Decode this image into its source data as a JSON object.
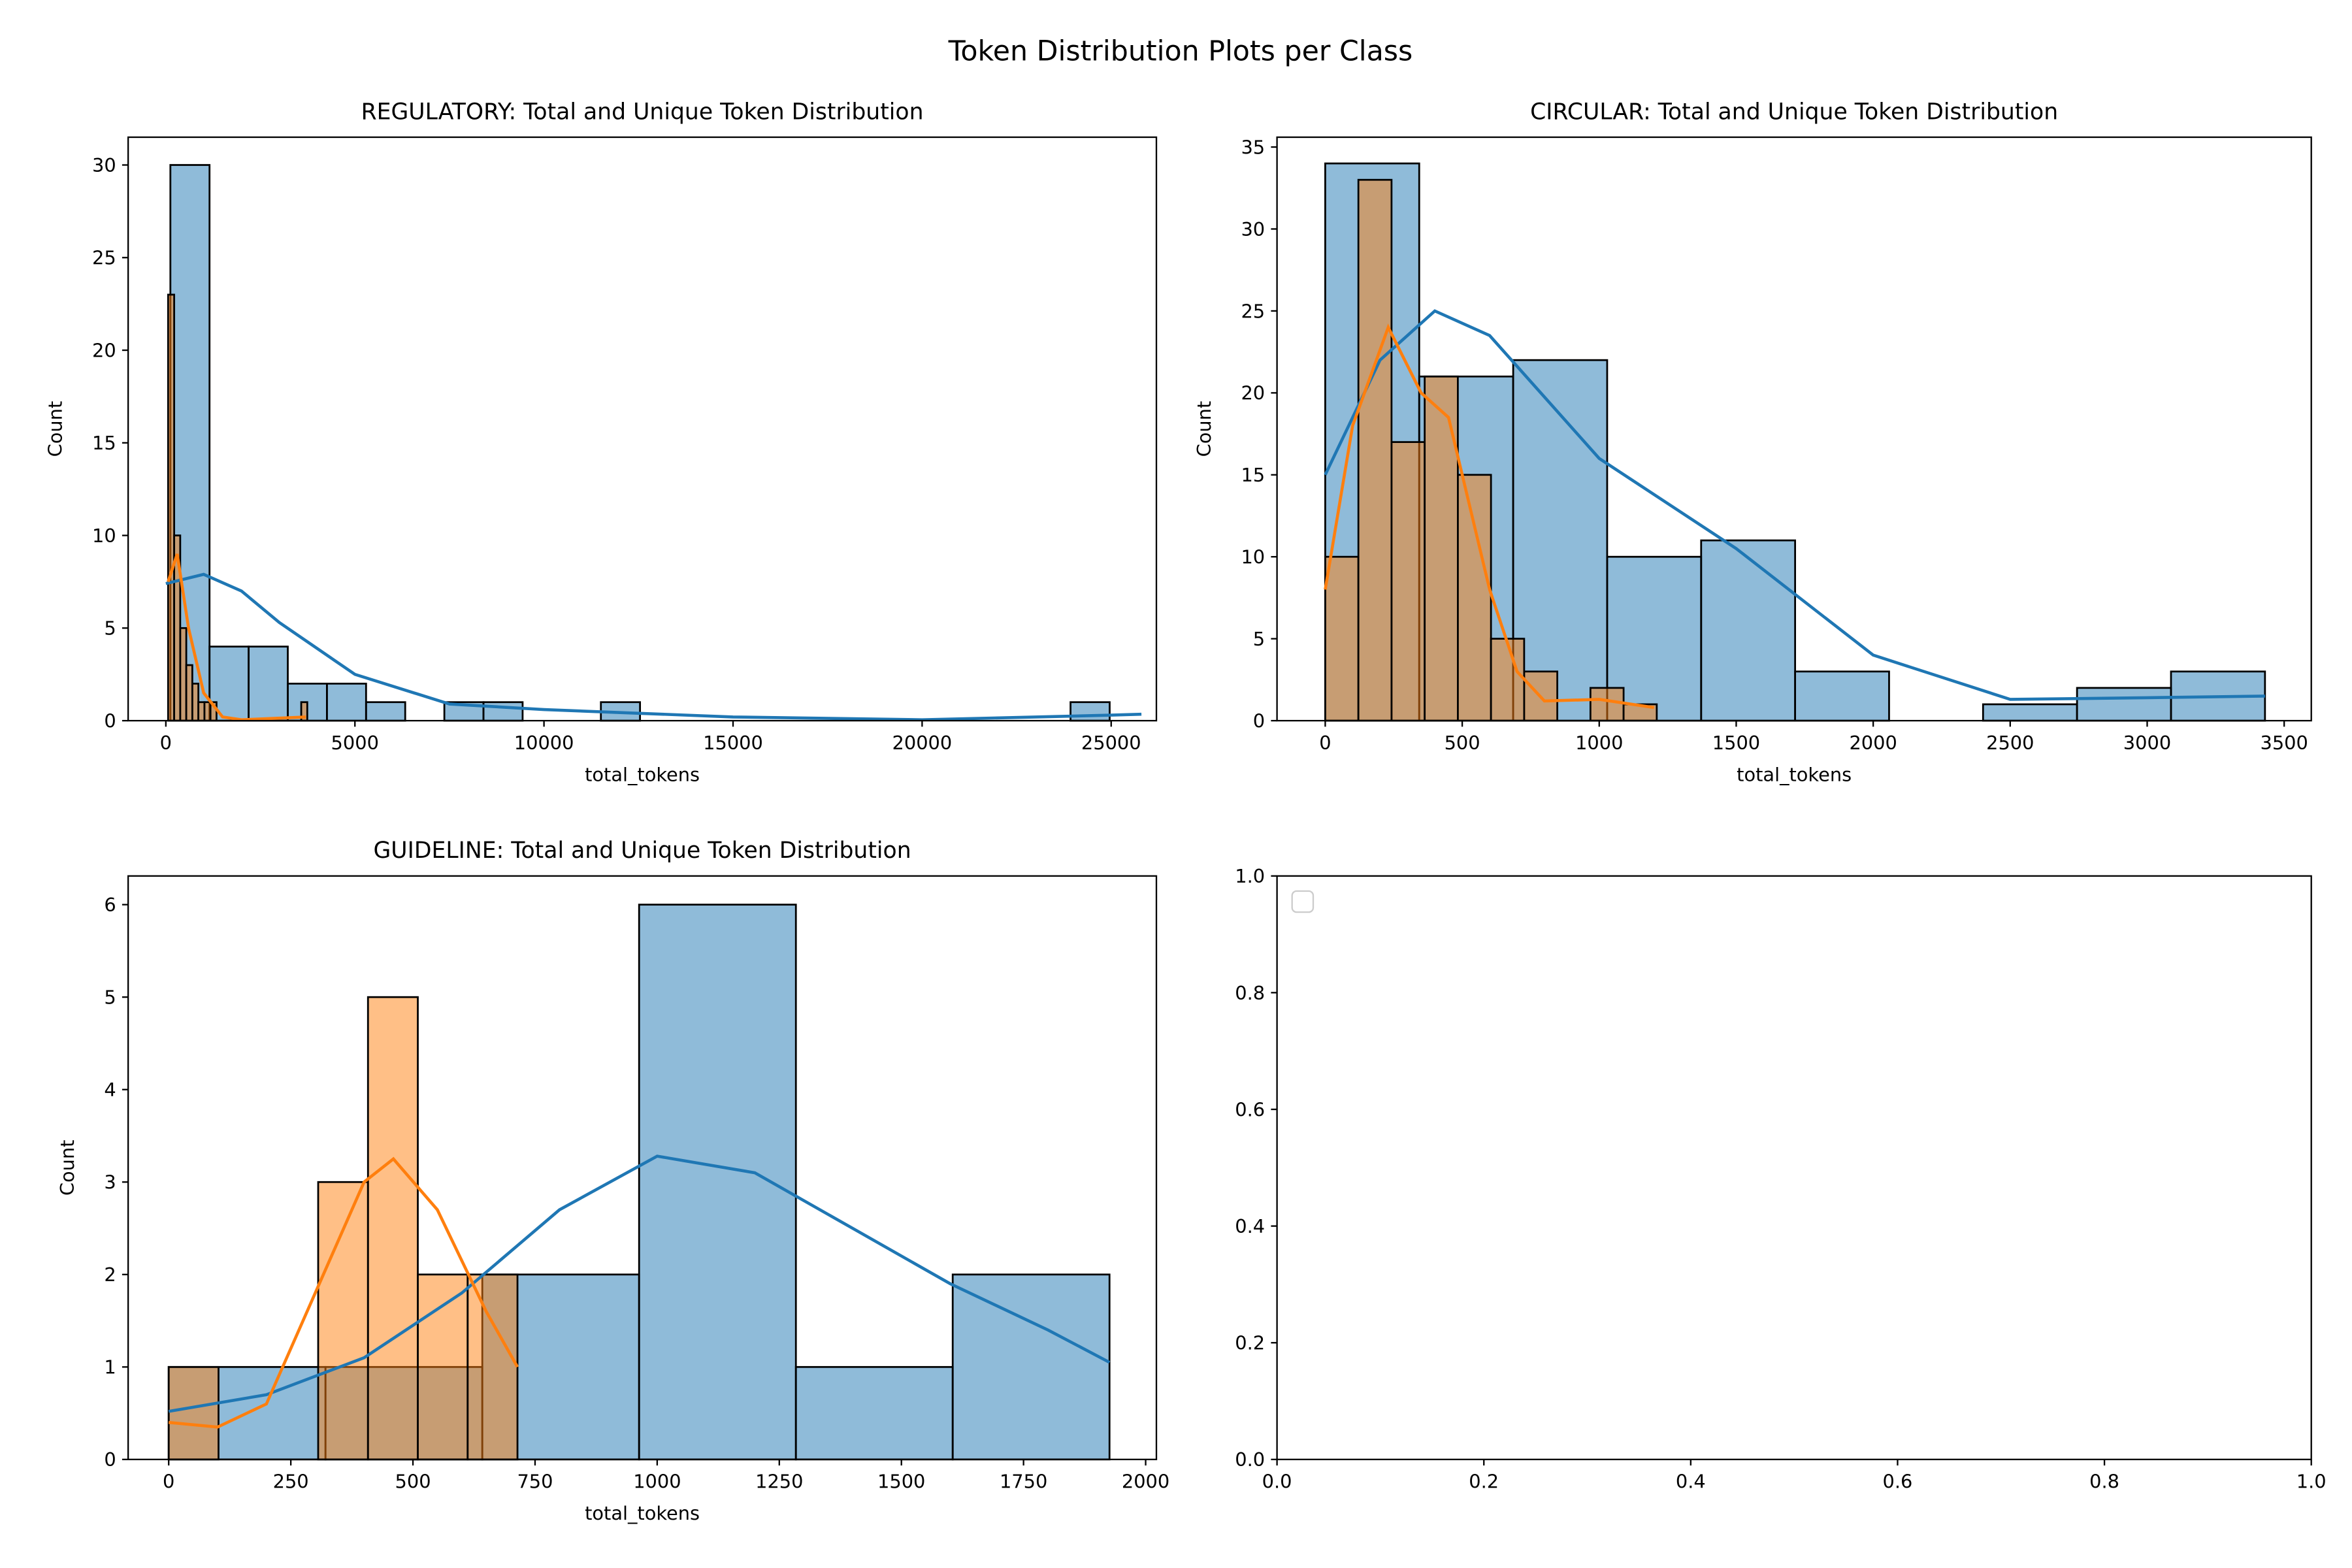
{
  "title": "Token Distribution Plots per Class",
  "chart_data": [
    {
      "type": "histogram",
      "title": "REGULATORY: Total and Unique Token Distribution",
      "xlabel": "total_tokens",
      "ylabel": "Count",
      "xlim": [
        -997,
        26196
      ],
      "ylim": [
        0,
        31.5
      ],
      "xticks": [
        0,
        5000,
        10000,
        15000,
        20000,
        25000
      ],
      "yticks": [
        0,
        5,
        10,
        15,
        20,
        25,
        30
      ],
      "series": [
        {
          "color": "#1f77b4",
          "bins": [
            120,
            1155,
            2190,
            3225,
            4260,
            5295,
            6330,
            7365,
            8400,
            9435,
            10470,
            11505,
            12540,
            13575,
            14610,
            15645,
            16680,
            17715,
            18750,
            19785,
            20820,
            21855,
            22890,
            23925,
            24960
          ],
          "values": [
            30,
            4,
            4,
            2,
            2,
            1,
            0,
            1,
            1,
            0,
            0,
            1,
            0,
            0,
            0,
            0,
            0,
            0,
            0,
            0,
            0,
            0,
            0,
            1
          ],
          "kde_x": [
            0,
            1000,
            2000,
            3000,
            5000,
            7500,
            10000,
            15000,
            20000,
            25000,
            25800
          ],
          "kde_y": [
            7.4,
            7.9,
            7,
            5.3,
            2.5,
            0.9,
            0.6,
            0.2,
            0.05,
            0.3,
            0.35
          ]
        },
        {
          "color": "#ff7f0e",
          "bins": [
            60,
            220,
            380,
            540,
            700,
            860,
            1020,
            1180,
            1340,
            1500,
            1660,
            1820,
            1980,
            2140,
            2300,
            2460,
            2620,
            2780,
            2940,
            3100,
            3260,
            3420,
            3580,
            3740
          ],
          "values": [
            23,
            10,
            5,
            3,
            2,
            1,
            1,
            1,
            0,
            0,
            0,
            0,
            0,
            0,
            0,
            0,
            0,
            0,
            0,
            0,
            0,
            0,
            1
          ],
          "kde_x": [
            60,
            300,
            600,
            1000,
            1500,
            2000,
            3700
          ],
          "kde_y": [
            7.5,
            9,
            5,
            1.5,
            0.2,
            0.05,
            0.2
          ]
        }
      ]
    },
    {
      "type": "histogram",
      "title": "CIRCULAR: Total and Unique Token Distribution",
      "xlabel": "total_tokens",
      "ylabel": "Count",
      "xlim": [
        -176,
        3599
      ],
      "ylim": [
        0,
        35.6
      ],
      "xticks": [
        0,
        500,
        1000,
        1500,
        2000,
        2500,
        3000,
        3500
      ],
      "yticks": [
        0,
        5,
        10,
        15,
        20,
        25,
        30,
        35
      ],
      "series": [
        {
          "color": "#1f77b4",
          "bins": [
            0,
            343,
            686,
            1029,
            1372,
            1715,
            2058,
            2401,
            2744,
            3087,
            3430
          ],
          "values": [
            34,
            21,
            22,
            10,
            11,
            3,
            0,
            1,
            2,
            3
          ],
          "kde_x": [
            0,
            200,
            400,
            600,
            1000,
            1500,
            2000,
            2500,
            3000,
            3430
          ],
          "kde_y": [
            15,
            22,
            25,
            23.5,
            16,
            10.5,
            4,
            1.3,
            1.4,
            1.5
          ]
        },
        {
          "color": "#ff7f0e",
          "bins": [
            0,
            121,
            242,
            363,
            484,
            605,
            726,
            847,
            968,
            1089,
            1210
          ],
          "values": [
            10,
            33,
            17,
            21,
            15,
            5,
            3,
            0,
            2,
            1
          ],
          "kde_x": [
            0,
            100,
            230,
            350,
            450,
            600,
            700,
            800,
            1000,
            1200
          ],
          "kde_y": [
            8,
            18,
            24,
            20,
            18.5,
            8,
            3,
            1.2,
            1.3,
            0.8
          ]
        }
      ]
    },
    {
      "type": "histogram",
      "title": "GUIDELINE: Total and Unique Token Distribution",
      "xlabel": "total_tokens",
      "ylabel": "Count",
      "xlim": [
        -83,
        2022
      ],
      "ylim": [
        0,
        6.31
      ],
      "xticks": [
        0,
        250,
        500,
        750,
        1000,
        1250,
        1500,
        1750,
        2000
      ],
      "yticks": [
        0,
        1,
        2,
        3,
        4,
        5,
        6
      ],
      "series": [
        {
          "color": "#1f77b4",
          "bins": [
            0,
            321,
            642,
            963,
            1284,
            1605,
            1926
          ],
          "values": [
            1,
            1,
            2,
            6,
            1,
            2
          ],
          "kde_x": [
            0,
            200,
            400,
            600,
            800,
            1000,
            1200,
            1400,
            1600,
            1800,
            1926
          ],
          "kde_y": [
            0.52,
            0.7,
            1.1,
            1.8,
            2.7,
            3.28,
            3.1,
            2.5,
            1.9,
            1.4,
            1.05
          ]
        },
        {
          "color": "#ff7f0e",
          "bins": [
            0,
            102,
            204,
            306,
            408,
            510,
            612,
            714
          ],
          "values": [
            1,
            0,
            0,
            3,
            5,
            2,
            2
          ],
          "kde_x": [
            0,
            100,
            200,
            300,
            400,
            460,
            550,
            650,
            714
          ],
          "kde_y": [
            0.4,
            0.35,
            0.6,
            1.8,
            3.0,
            3.25,
            2.7,
            1.6,
            1.0
          ]
        }
      ]
    },
    {
      "type": "empty",
      "legend": "upper left",
      "xlim": [
        0,
        1
      ],
      "ylim": [
        0,
        1
      ],
      "xticks": [
        {
          "value": 0,
          "label": "0.0"
        },
        {
          "value": 0.2,
          "label": "0.2"
        },
        {
          "value": 0.4,
          "label": "0.4"
        },
        {
          "value": 0.6,
          "label": "0.6"
        },
        {
          "value": 0.8,
          "label": "0.8"
        },
        {
          "value": 1,
          "label": "1.0"
        }
      ],
      "yticks": [
        {
          "value": 0,
          "label": "0.0"
        },
        {
          "value": 0.2,
          "label": "0.2"
        },
        {
          "value": 0.4,
          "label": "0.4"
        },
        {
          "value": 0.6,
          "label": "0.6"
        },
        {
          "value": 0.8,
          "label": "0.8"
        },
        {
          "value": 1,
          "label": "1.0"
        }
      ]
    }
  ]
}
